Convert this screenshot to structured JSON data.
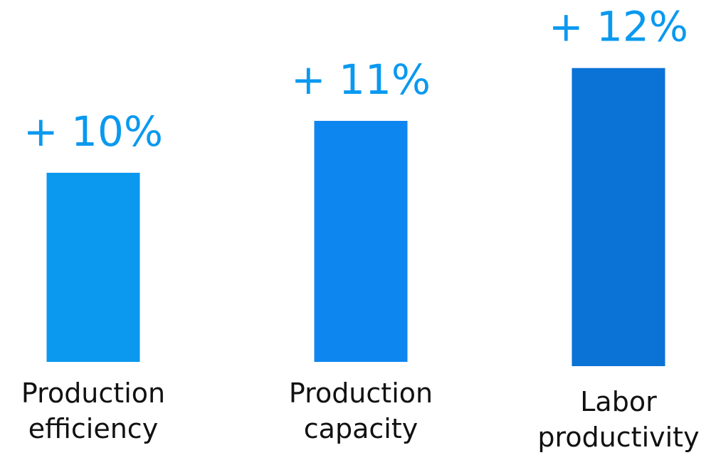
{
  "chart_data": {
    "type": "bar",
    "categories": [
      [
        "Production",
        "efficiency"
      ],
      [
        "Production",
        "capacity"
      ],
      [
        "Labor",
        "productivity"
      ]
    ],
    "values": [
      10,
      11,
      12
    ],
    "data_labels": [
      "+ 10%",
      "+ 11%",
      "+ 12%"
    ],
    "unit": "%",
    "bar_colors": [
      "#0a99ef",
      "#0e86f0",
      "#0b72d6"
    ],
    "label_color": "#0a99ef",
    "title": "",
    "xlabel": "",
    "ylabel": "",
    "grid": false,
    "legend": "none"
  }
}
